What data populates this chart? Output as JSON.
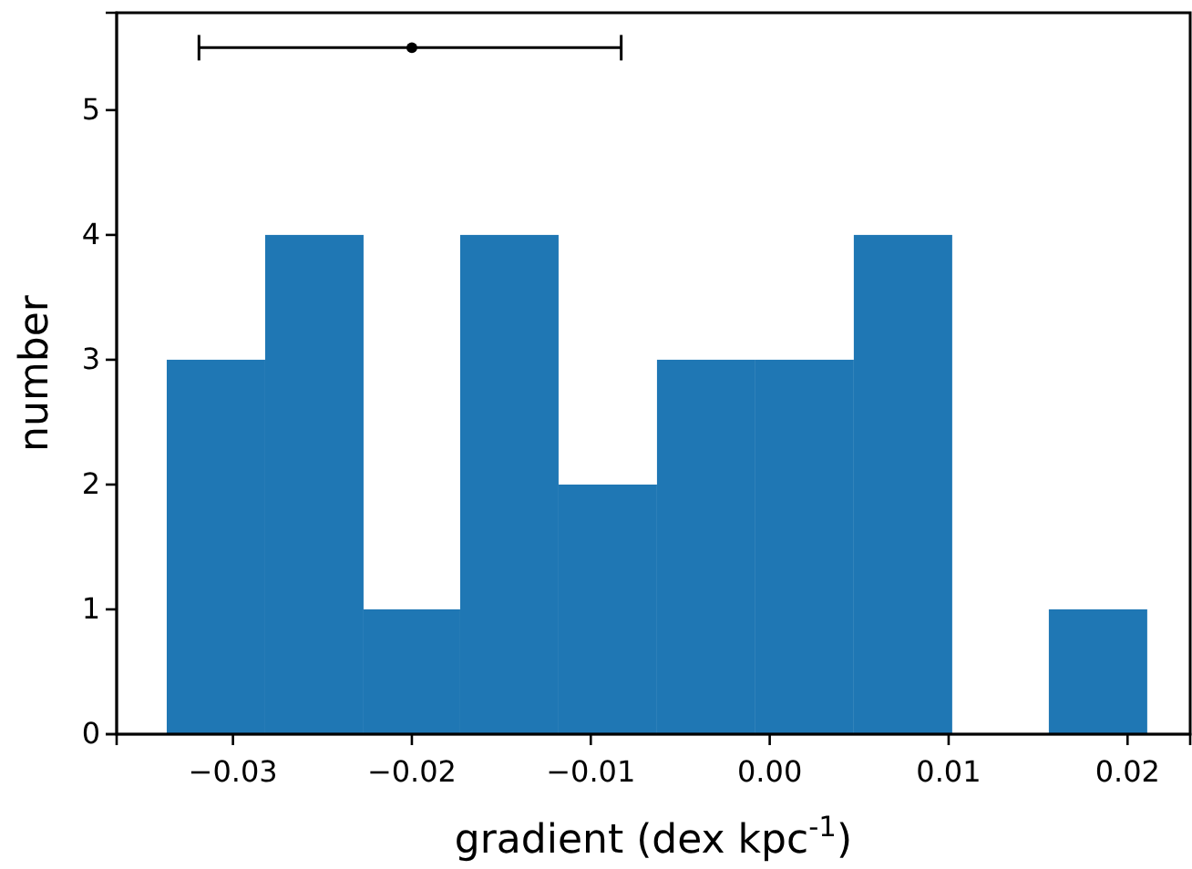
{
  "chart_data": {
    "type": "histogram",
    "xlabel": "gradient (dex kpc$^{-1}$)",
    "ylabel": "number",
    "bins": [
      -0.0337,
      -0.0282,
      -0.0227,
      -0.0173,
      -0.0118,
      -0.0063,
      -0.0008,
      0.0047,
      0.0102,
      0.0156,
      0.0211
    ],
    "values": [
      3,
      4,
      1,
      4,
      2,
      3,
      3,
      4,
      0,
      1
    ],
    "color": "#1f77b4",
    "series": [
      {
        "type": "scatter",
        "color": "#000000",
        "x": [
          -0.02
        ],
        "values": [
          5.5
        ],
        "xerrors": [
          [
            -0.0319,
            -0.0083
          ]
        ],
        "marker": "circle"
      }
    ],
    "xlim": [
      -0.0365,
      0.0235
    ],
    "ylim": [
      0,
      5.78
    ],
    "xticks": [
      {
        "value": -0.03,
        "label": "−0.03"
      },
      {
        "value": -0.02,
        "label": "−0.02"
      },
      {
        "value": -0.01,
        "label": "−0.01"
      },
      {
        "value": 0,
        "label": "0.00"
      },
      {
        "value": 0.01,
        "label": "0.01"
      },
      {
        "value": 0.02,
        "label": "0.02"
      }
    ],
    "yticks": [
      0,
      1,
      2,
      3,
      4,
      5
    ],
    "grid": false
  }
}
